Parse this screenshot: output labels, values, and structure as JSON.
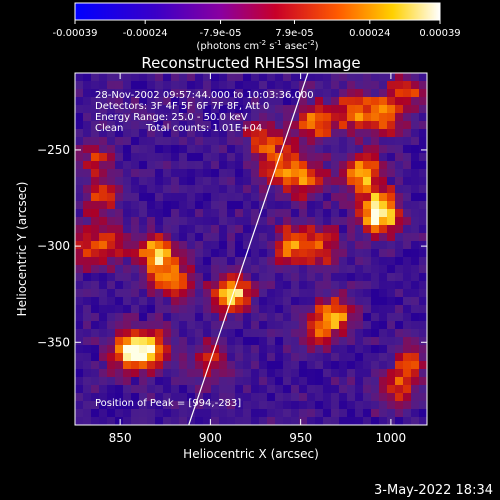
{
  "chart_data": {
    "type": "heatmap",
    "title": "Reconstructed RHESSI Image",
    "xlabel": "Heliocentric X (arcsec)",
    "ylabel": "Heliocentric Y (arcsec)",
    "x_range": [
      825,
      1020
    ],
    "y_range": [
      -393,
      -210
    ],
    "x_ticks": [
      850,
      900,
      950,
      1000
    ],
    "y_ticks": [
      -350,
      -300,
      -250
    ],
    "colorbar": {
      "range": [
        -0.00039,
        0.00039
      ],
      "tick_values": [
        -0.00039,
        -0.00024,
        -7.9e-05,
        7.9e-05,
        0.00024,
        0.00039
      ],
      "tick_labels": [
        "-0.00039",
        "-0.00024",
        "-7.9e-05",
        "7.9e-05",
        "0.00024",
        "0.00039"
      ],
      "unit_label_parts": [
        "(photons cm",
        "-2",
        " s",
        "-1",
        " asec",
        "-2",
        ")"
      ]
    },
    "info_lines": [
      "28-Nov-2002 09:57:44.000 to 10:03:36.000",
      "Detectors: 3F 4F 5F 6F 7F 8F, Att 0",
      "Energy Range: 25.0 - 50.0 keV",
      "Clean",
      "Total counts: 1.01E+04"
    ],
    "peak_label": "Position of Peak = [994,-283]",
    "peak": [
      994,
      -283
    ],
    "limb_line": [
      [
        888,
        -393
      ],
      [
        954,
        -210
      ]
    ],
    "bright_regions": [
      {
        "x": 994,
        "y": -283,
        "level": 1.0
      },
      {
        "x": 985,
        "y": -262,
        "level": 0.75
      },
      {
        "x": 995,
        "y": -232,
        "level": 0.65
      },
      {
        "x": 978,
        "y": -230,
        "level": 0.55
      },
      {
        "x": 958,
        "y": -236,
        "level": 0.6
      },
      {
        "x": 940,
        "y": -260,
        "level": 0.55
      },
      {
        "x": 930,
        "y": -245,
        "level": 0.5
      },
      {
        "x": 945,
        "y": -300,
        "level": 0.6
      },
      {
        "x": 962,
        "y": -300,
        "level": 0.5
      },
      {
        "x": 970,
        "y": -335,
        "level": 0.55
      },
      {
        "x": 960,
        "y": -345,
        "level": 0.45
      },
      {
        "x": 912,
        "y": -325,
        "level": 0.8
      },
      {
        "x": 870,
        "y": -305,
        "level": 0.75
      },
      {
        "x": 880,
        "y": -318,
        "level": 0.55
      },
      {
        "x": 855,
        "y": -355,
        "level": 0.85
      },
      {
        "x": 868,
        "y": -353,
        "level": 0.6
      },
      {
        "x": 845,
        "y": -300,
        "level": 0.4
      },
      {
        "x": 840,
        "y": -275,
        "level": 0.45
      },
      {
        "x": 835,
        "y": -252,
        "level": 0.4
      },
      {
        "x": 830,
        "y": -300,
        "level": 0.4
      },
      {
        "x": 900,
        "y": -360,
        "level": 0.4
      },
      {
        "x": 1003,
        "y": -375,
        "level": 0.45
      },
      {
        "x": 1012,
        "y": -360,
        "level": 0.4
      },
      {
        "x": 1010,
        "y": -220,
        "level": 0.4
      },
      {
        "x": 955,
        "y": -265,
        "level": 0.5
      }
    ],
    "grid": false,
    "colormap": "blue-purple-red-yellow-white"
  },
  "footer": {
    "date": "3-May-2022 18:34"
  }
}
